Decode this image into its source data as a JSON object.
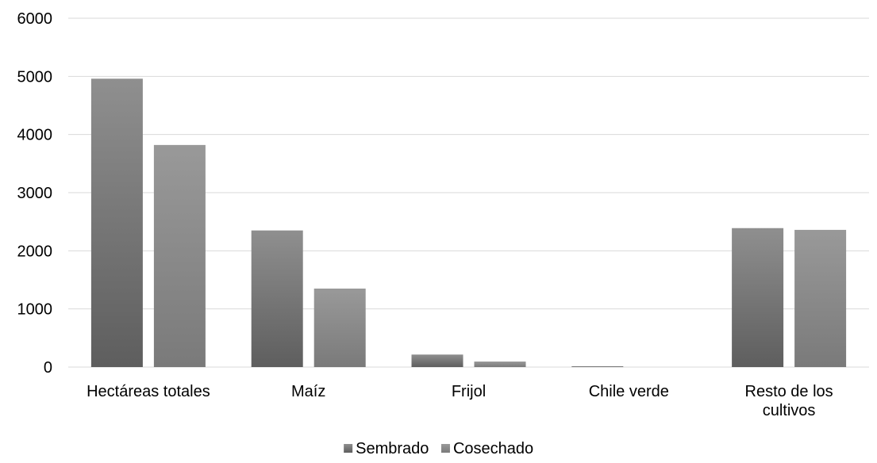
{
  "chart_data": {
    "type": "bar",
    "title": "",
    "xlabel": "",
    "ylabel": "",
    "categories": [
      [
        "Hectáreas totales"
      ],
      [
        "Maíz"
      ],
      [
        "Frijol"
      ],
      [
        "Chile verde"
      ],
      [
        "Resto de los",
        "cultivos"
      ]
    ],
    "series": [
      {
        "name": "Sembrado",
        "values": [
          4960,
          2350,
          215,
          8,
          2390
        ]
      },
      {
        "name": "Cosechado",
        "values": [
          3820,
          1350,
          95,
          0,
          2360
        ]
      }
    ],
    "ylim": [
      0,
      6000
    ],
    "yticks": [
      0,
      1000,
      2000,
      3000,
      4000,
      5000,
      6000
    ],
    "grid": true,
    "legend_position": "bottom",
    "colors": {
      "sembrado_top": "#8f8f8f",
      "sembrado_bottom": "#5e5e5e",
      "cosechado_top": "#999999",
      "cosechado_bottom": "#7a7a7a",
      "gridline": "#d9d9d9"
    }
  }
}
